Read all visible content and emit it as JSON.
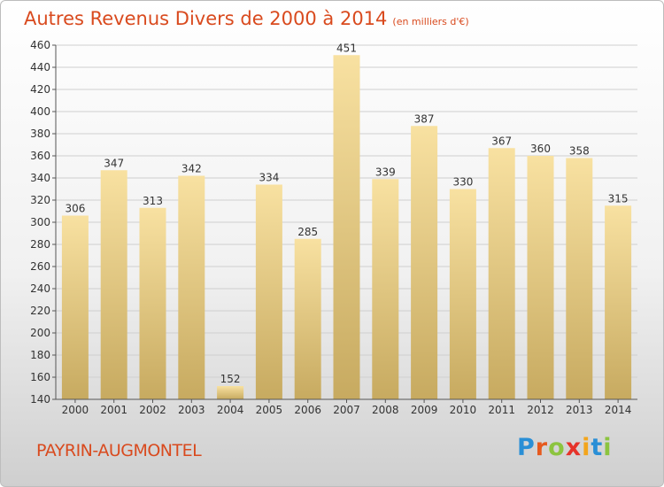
{
  "title": "Autres Revenus Divers de 2000 à 2014",
  "unit": "(en milliers d'€)",
  "commune": "PAYRIN-AUGMONTEL",
  "logo": {
    "letters": [
      "P",
      "r",
      "o",
      "x",
      "i",
      "t",
      "i"
    ],
    "colors": [
      "#2a8fd6",
      "#e65a1e",
      "#8cc43f",
      "#e6332a",
      "#f3a51c",
      "#2a8fd6",
      "#8cc43f"
    ]
  },
  "colors": {
    "title": "#d94a1e",
    "bar_light": "#f7df9c",
    "bar_dark": "#c8ab62"
  },
  "chart_data": {
    "type": "bar",
    "categories": [
      "2000",
      "2001",
      "2002",
      "2003",
      "2004",
      "2005",
      "2006",
      "2007",
      "2008",
      "2009",
      "2010",
      "2011",
      "2012",
      "2013",
      "2014"
    ],
    "values": [
      306,
      347,
      313,
      342,
      152,
      334,
      285,
      451,
      339,
      387,
      330,
      367,
      360,
      358,
      315
    ],
    "ylim": [
      140,
      460
    ],
    "yticks": [
      140,
      160,
      180,
      200,
      220,
      240,
      260,
      280,
      300,
      320,
      340,
      360,
      380,
      400,
      420,
      440,
      460
    ],
    "grid": true
  }
}
